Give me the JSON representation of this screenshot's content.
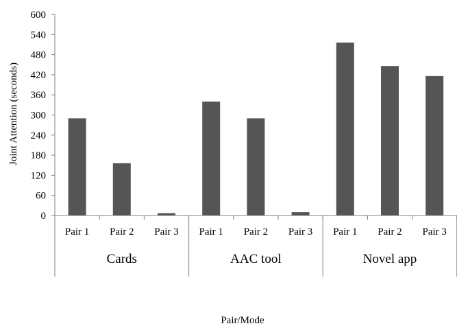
{
  "chart_data": {
    "type": "bar",
    "groups": [
      {
        "label": "Cards",
        "categories": [
          "Pair 1",
          "Pair 2",
          "Pair 3"
        ]
      },
      {
        "label": "AAC tool",
        "categories": [
          "Pair 1",
          "Pair 2",
          "Pair 3"
        ]
      },
      {
        "label": "Novel app",
        "categories": [
          "Pair 1",
          "Pair 2",
          "Pair 3"
        ]
      }
    ],
    "values": [
      290,
      156,
      7,
      340,
      290,
      10,
      516,
      446,
      416
    ],
    "xlabel": "Pair/Mode",
    "ylabel": "Joint Attention (seconds)",
    "ylim": [
      0,
      600
    ],
    "yticks": [
      0,
      60,
      120,
      180,
      240,
      300,
      360,
      420,
      480,
      540,
      600
    ],
    "grid": false,
    "bar_color": "#555555"
  }
}
